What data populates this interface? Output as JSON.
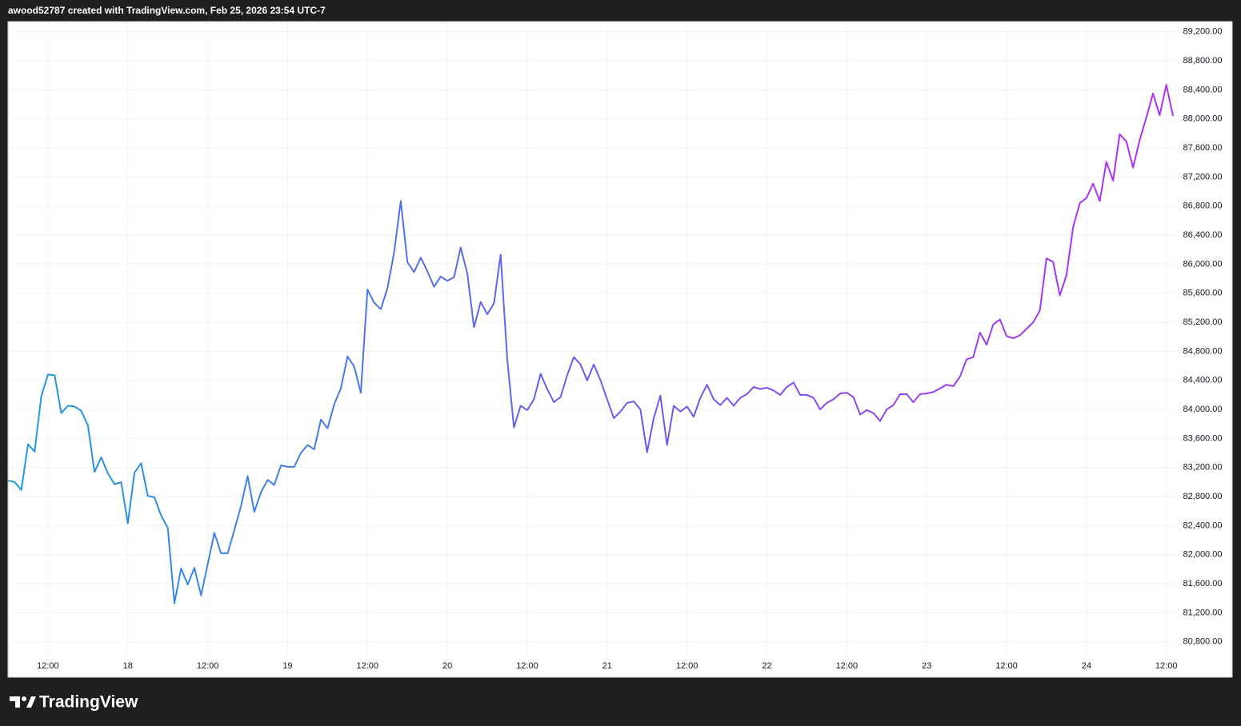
{
  "header": "awood52787 created with TradingView.com, Feb 25, 2026 23:54 UTC-7",
  "footer": "TradingView",
  "chart_data": {
    "type": "line",
    "categories": [
      null,
      null,
      null,
      null,
      null,
      null,
      "12:00",
      null,
      null,
      null,
      null,
      null,
      null,
      null,
      null,
      null,
      null,
      null,
      "18",
      null,
      null,
      null,
      null,
      null,
      null,
      null,
      null,
      null,
      null,
      null,
      "12:00",
      null,
      null,
      null,
      null,
      null,
      null,
      null,
      null,
      null,
      null,
      null,
      "19",
      null,
      null,
      null,
      null,
      null,
      null,
      null,
      null,
      null,
      null,
      null,
      "12:00",
      null,
      null,
      null,
      null,
      null,
      null,
      null,
      null,
      null,
      null,
      null,
      "20",
      null,
      null,
      null,
      null,
      null,
      null,
      null,
      null,
      null,
      null,
      null,
      "12:00",
      null,
      null,
      null,
      null,
      null,
      null,
      null,
      null,
      null,
      null,
      null,
      "21",
      null,
      null,
      null,
      null,
      null,
      null,
      null,
      null,
      null,
      null,
      null,
      "12:00",
      null,
      null,
      null,
      null,
      null,
      null,
      null,
      null,
      null,
      null,
      null,
      "22",
      null,
      null,
      null,
      null,
      null,
      null,
      null,
      null,
      null,
      null,
      null,
      "12:00",
      null,
      null,
      null,
      null,
      null,
      null,
      null,
      null,
      null,
      null,
      null,
      "23",
      null,
      null,
      null,
      null,
      null,
      null,
      null,
      null,
      null,
      null,
      null,
      "12:00",
      null,
      null,
      null,
      null,
      null,
      null,
      null,
      null,
      null,
      null,
      null,
      "24",
      null,
      null,
      null,
      null,
      null,
      null,
      null,
      null,
      null,
      null,
      null,
      "12:00",
      null
    ],
    "series": [
      {
        "color_stops": [
          "#1e9be0",
          "#6a5cec",
          "#b22ef0"
        ],
        "values": [
          83020,
          83000,
          82890,
          83520,
          83420,
          84180,
          84480,
          84470,
          83950,
          84050,
          84040,
          83980,
          83780,
          83140,
          83340,
          83120,
          82970,
          83000,
          82430,
          83130,
          83260,
          82810,
          82790,
          82540,
          82370,
          81330,
          81810,
          81590,
          81820,
          81440,
          81870,
          82300,
          82020,
          82020,
          82340,
          82670,
          83080,
          82590,
          82860,
          83030,
          82960,
          83230,
          83210,
          83210,
          83400,
          83510,
          83450,
          83860,
          83740,
          84070,
          84290,
          84730,
          84590,
          84230,
          85650,
          85470,
          85380,
          85670,
          86160,
          86870,
          86030,
          85890,
          86090,
          85900,
          85690,
          85830,
          85770,
          85820,
          86230,
          85870,
          85130,
          85480,
          85310,
          85460,
          86130,
          84690,
          83750,
          84050,
          83990,
          84140,
          84490,
          84280,
          84100,
          84170,
          84470,
          84720,
          84620,
          84400,
          84620,
          84400,
          84140,
          83880,
          83970,
          84090,
          84110,
          84000,
          83410,
          83880,
          84190,
          83510,
          84050,
          83970,
          84040,
          83900,
          84160,
          84340,
          84140,
          84060,
          84160,
          84050,
          84160,
          84210,
          84310,
          84280,
          84300,
          84260,
          84200,
          84310,
          84370,
          84200,
          84200,
          84160,
          84000,
          84090,
          84140,
          84220,
          84230,
          84170,
          83930,
          83990,
          83950,
          83840,
          84000,
          84060,
          84210,
          84210,
          84100,
          84210,
          84220,
          84240,
          84290,
          84340,
          84320,
          84450,
          84690,
          84720,
          85060,
          84890,
          85170,
          85240,
          85010,
          84980,
          85020,
          85110,
          85200,
          85360,
          86080,
          86030,
          85570,
          85850,
          86510,
          86840,
          86910,
          87110,
          86870,
          87410,
          87150,
          87790,
          87690,
          87330,
          87710,
          88020,
          88350,
          88050,
          88470,
          88040
        ]
      }
    ],
    "ylim": [
      80610,
      89340
    ],
    "yticks": [
      {
        "value": 80800,
        "label": "80,800.00"
      },
      {
        "value": 81200,
        "label": "81,200.00"
      },
      {
        "value": 81600,
        "label": "81,600.00"
      },
      {
        "value": 82000,
        "label": "82,000.00"
      },
      {
        "value": 82400,
        "label": "82,400.00"
      },
      {
        "value": 82800,
        "label": "82,800.00"
      },
      {
        "value": 83200,
        "label": "83,200.00"
      },
      {
        "value": 83600,
        "label": "83,600.00"
      },
      {
        "value": 84000,
        "label": "84,000.00"
      },
      {
        "value": 84400,
        "label": "84,400.00"
      },
      {
        "value": 84800,
        "label": "84,800.00"
      },
      {
        "value": 85200,
        "label": "85,200.00"
      },
      {
        "value": 85600,
        "label": "85,600.00"
      },
      {
        "value": 86000,
        "label": "86,000.00"
      },
      {
        "value": 86400,
        "label": "86,400.00"
      },
      {
        "value": 86800,
        "label": "86,800.00"
      },
      {
        "value": 87200,
        "label": "87,200.00"
      },
      {
        "value": 87600,
        "label": "87,600.00"
      },
      {
        "value": 88000,
        "label": "88,000.00"
      },
      {
        "value": 88400,
        "label": "88,400.00"
      },
      {
        "value": 88800,
        "label": "88,800.00"
      },
      {
        "value": 89200,
        "label": "89,200.00"
      }
    ],
    "grid": true
  }
}
